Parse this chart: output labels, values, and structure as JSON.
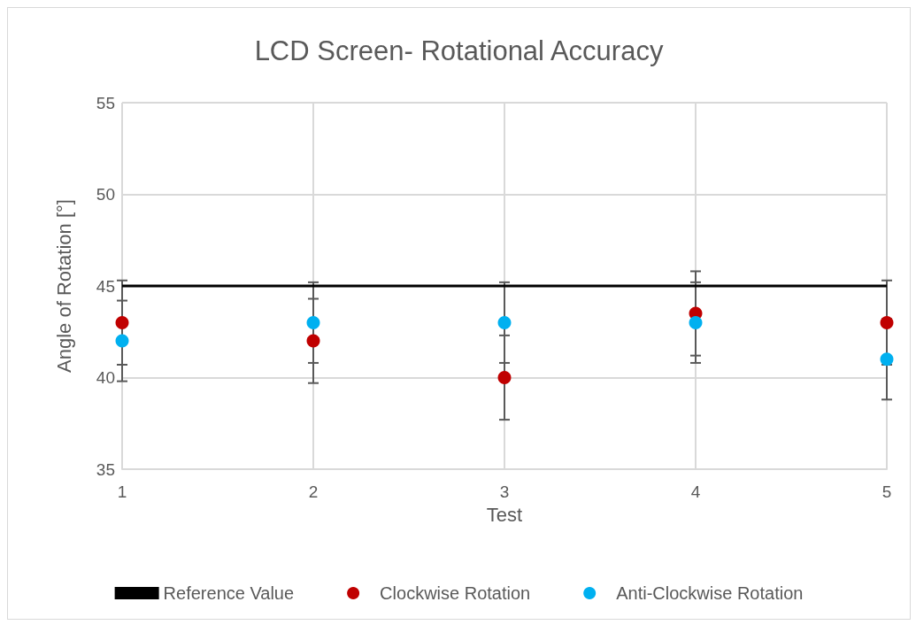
{
  "chart_data": {
    "type": "scatter",
    "title": "LCD Screen- Rotational Accuracy",
    "xlabel": "Test",
    "ylabel": "Angle of Rotation [°]",
    "xlim": [
      1,
      5
    ],
    "xticks": [
      1,
      2,
      3,
      4,
      5
    ],
    "ylim": [
      35,
      55
    ],
    "yticks": [
      35,
      40,
      45,
      50,
      55
    ],
    "grid": true,
    "legend": "bottom",
    "marker": "circle",
    "x": [
      1,
      2,
      3,
      4,
      5
    ],
    "series": [
      {
        "name": "Reference Value",
        "type": "line",
        "color": "#000000",
        "x": [
          1,
          5
        ],
        "values": [
          45,
          45
        ],
        "marker": "none"
      },
      {
        "name": "Clockwise Rotation",
        "color": "#c00000",
        "values": [
          43,
          42,
          40,
          43.5,
          43
        ],
        "errors": [
          2.3,
          2.3,
          2.3,
          2.3,
          2.3
        ]
      },
      {
        "name": "Anti-Clockwise Rotation",
        "color": "#00b0f0",
        "values": [
          42,
          43,
          43,
          43,
          41
        ],
        "errors": [
          2.2,
          2.2,
          2.2,
          2.2,
          2.2
        ]
      }
    ]
  }
}
